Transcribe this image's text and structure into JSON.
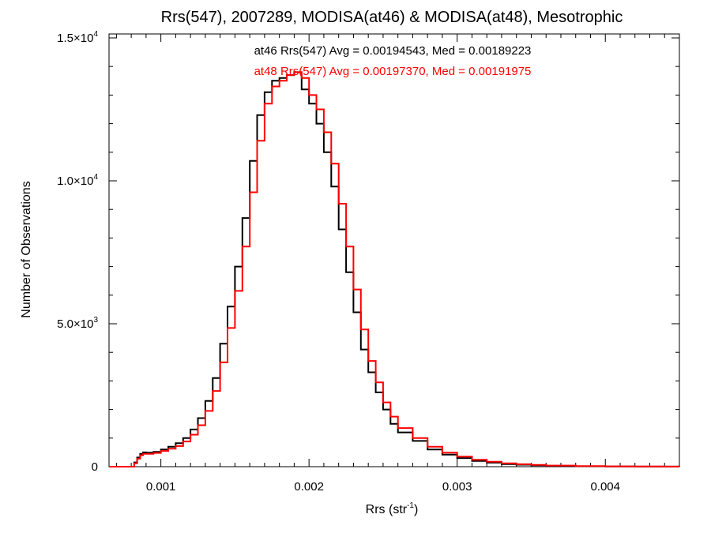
{
  "chart_data": {
    "type": "line",
    "title": "Rrs(547), 2007289, MODISA(at46) & MODISA(at48), Mesotrophic",
    "xlabel": "Rrs (str",
    "xlabel_sup": "-1",
    "xlabel_close": ")",
    "ylabel": "Number of Observations",
    "xlim": [
      0.00065,
      0.0045
    ],
    "ylim": [
      0,
      15000
    ],
    "grid": false,
    "legend_position": "top-center",
    "x_ticks": [
      {
        "value": 0.001,
        "label": "0.001"
      },
      {
        "value": 0.002,
        "label": "0.002"
      },
      {
        "value": 0.003,
        "label": "0.003"
      },
      {
        "value": 0.004,
        "label": "0.004"
      }
    ],
    "y_ticks": [
      {
        "value": 0,
        "mantissa": "0",
        "exp": ""
      },
      {
        "value": 5000,
        "mantissa": "5.0×10",
        "exp": "3"
      },
      {
        "value": 10000,
        "mantissa": "1.0×10",
        "exp": "4"
      },
      {
        "value": 15000,
        "mantissa": "1.5×10",
        "exp": "4"
      }
    ],
    "series": [
      {
        "name": "at46",
        "legend": "at46 Rrs(547) Avg = 0.00194543, Med = 0.00189223",
        "color": "#000000",
        "x": [
          0.0008,
          0.00082,
          0.00084,
          0.00086,
          0.00088,
          0.0009,
          0.00095,
          0.001,
          0.00105,
          0.0011,
          0.00115,
          0.0012,
          0.00125,
          0.0013,
          0.00135,
          0.0014,
          0.00145,
          0.0015,
          0.00155,
          0.0016,
          0.00165,
          0.0017,
          0.00175,
          0.0018,
          0.00185,
          0.0019,
          0.00195,
          0.002,
          0.00205,
          0.0021,
          0.00215,
          0.0022,
          0.00225,
          0.0023,
          0.00235,
          0.0024,
          0.00245,
          0.0025,
          0.00255,
          0.0026,
          0.0027,
          0.0028,
          0.0029,
          0.003,
          0.0031,
          0.0032,
          0.0033,
          0.0034,
          0.0035,
          0.0036,
          0.0038,
          0.004,
          0.0042,
          0.0044,
          0.0045
        ],
        "y": [
          0,
          150,
          320,
          450,
          500,
          490,
          520,
          600,
          700,
          820,
          1000,
          1300,
          1700,
          2300,
          3100,
          4300,
          5600,
          7000,
          8700,
          10700,
          12300,
          13100,
          13500,
          13600,
          13700,
          13800,
          13200,
          12700,
          12000,
          11000,
          9800,
          8300,
          6800,
          5400,
          4100,
          3300,
          2600,
          2000,
          1500,
          1200,
          900,
          600,
          420,
          300,
          200,
          140,
          90,
          70,
          50,
          30,
          15,
          8,
          4,
          2,
          0
        ]
      },
      {
        "name": "at48",
        "legend": "at48 Rrs(547) Avg = 0.00197370, Med = 0.00191975",
        "color": "#ff0000",
        "x": [
          0.0008,
          0.00082,
          0.00084,
          0.00086,
          0.00088,
          0.0009,
          0.00095,
          0.001,
          0.00105,
          0.0011,
          0.00115,
          0.0012,
          0.00125,
          0.0013,
          0.00135,
          0.0014,
          0.00145,
          0.0015,
          0.00155,
          0.0016,
          0.00165,
          0.0017,
          0.00175,
          0.0018,
          0.00185,
          0.0019,
          0.00195,
          0.002,
          0.00205,
          0.0021,
          0.00215,
          0.0022,
          0.00225,
          0.0023,
          0.00235,
          0.0024,
          0.00245,
          0.0025,
          0.00255,
          0.0026,
          0.0027,
          0.0028,
          0.0029,
          0.003,
          0.0031,
          0.0032,
          0.0033,
          0.0034,
          0.0035,
          0.0036,
          0.0038,
          0.004,
          0.0042,
          0.0044,
          0.0045
        ],
        "y": [
          0,
          120,
          280,
          400,
          450,
          450,
          480,
          550,
          630,
          720,
          880,
          1120,
          1450,
          1950,
          2650,
          3650,
          4850,
          6150,
          7700,
          9600,
          11400,
          12700,
          13300,
          13500,
          13700,
          13800,
          13600,
          13000,
          12500,
          11700,
          10600,
          9200,
          7700,
          6200,
          4800,
          3700,
          2950,
          2250,
          1750,
          1350,
          1000,
          700,
          490,
          350,
          240,
          170,
          115,
          85,
          60,
          40,
          20,
          10,
          5,
          2,
          0
        ]
      }
    ]
  }
}
